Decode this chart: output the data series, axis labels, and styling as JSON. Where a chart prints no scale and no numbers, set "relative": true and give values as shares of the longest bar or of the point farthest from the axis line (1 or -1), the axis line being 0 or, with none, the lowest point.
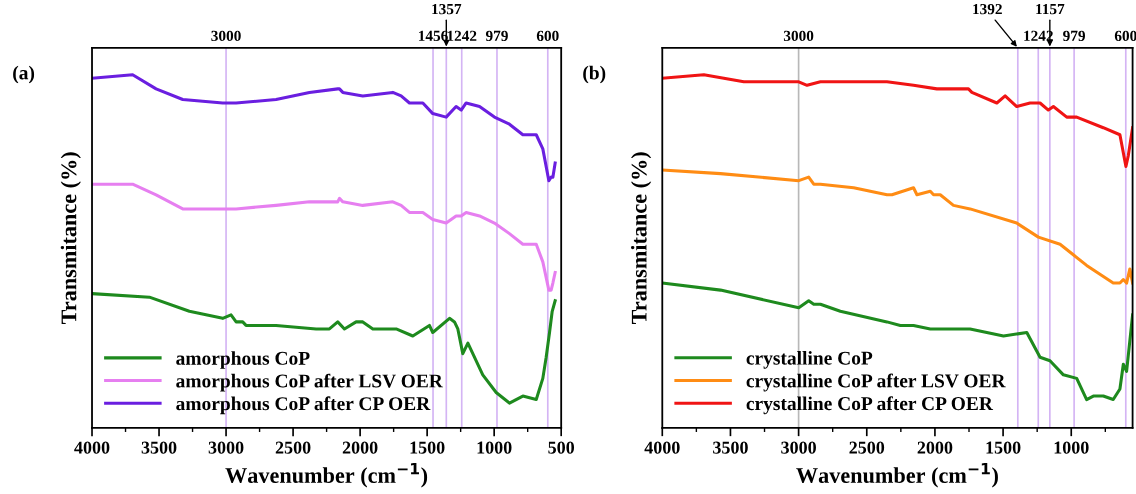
{
  "chart_data": [
    {
      "type": "line",
      "title": "(a)",
      "xlabel": "Wavenumber (cm$^{−1}$)",
      "ylabel": "Transmitance (%)",
      "relative": true,
      "xlim": [
        4000,
        500
      ],
      "xticks": [
        4000,
        3500,
        3000,
        2500,
        2000,
        1500,
        1000,
        500
      ],
      "legend": "bottom left",
      "grid": false,
      "tick_labels": "x",
      "ref_lines": [
        {
          "axis": "x",
          "value": 3000,
          "label": "3000",
          "color": "#d4b4f4"
        },
        {
          "axis": "x",
          "value": 1456,
          "label": "1456",
          "color": "#d4b4f4"
        },
        {
          "axis": "x",
          "value": 1242,
          "label": "1242",
          "color": "#d4b4f4"
        },
        {
          "axis": "x",
          "value": 1357,
          "label": "1357",
          "color": "#d4b4f4"
        },
        {
          "axis": "x",
          "value": 979,
          "label": "979",
          "color": "#d4b4f4"
        },
        {
          "axis": "x",
          "value": 600,
          "label": "600",
          "color": "#d4b4f4"
        }
      ],
      "series": [
        {
          "name": "amorphous CoP",
          "color": "#1e8a1e",
          "x": [
            4000,
            3572,
            3274,
            3025,
            2963,
            2925,
            2876,
            2851,
            2627,
            2328,
            2229,
            2167,
            2117,
            2030,
            1980,
            1905,
            1731,
            1607,
            1483,
            1458,
            1333,
            1296,
            1271,
            1234,
            1196,
            1085,
            985,
            886,
            836,
            786,
            686,
            637,
            612,
            587,
            567,
            545
          ],
          "values": [
            0.38,
            0.37,
            0.33,
            0.31,
            0.32,
            0.3,
            0.3,
            0.29,
            0.29,
            0.28,
            0.28,
            0.3,
            0.28,
            0.3,
            0.3,
            0.28,
            0.28,
            0.26,
            0.29,
            0.27,
            0.31,
            0.3,
            0.28,
            0.21,
            0.24,
            0.15,
            0.1,
            0.07,
            0.08,
            0.09,
            0.08,
            0.14,
            0.2,
            0.27,
            0.33,
            0.36
          ]
        },
        {
          "name": "amorphous CoP after LSV OER",
          "color": "#e67ff0",
          "x": [
            4000,
            3697,
            3522,
            3323,
            3025,
            2925,
            2627,
            2378,
            2167,
            2154,
            2129,
            1980,
            1756,
            1694,
            1632,
            1532,
            1458,
            1358,
            1284,
            1246,
            1209,
            1109,
            998,
            886,
            786,
            686,
            637,
            592,
            575,
            562,
            545
          ],
          "values": [
            0.69,
            0.69,
            0.66,
            0.62,
            0.62,
            0.62,
            0.63,
            0.64,
            0.64,
            0.65,
            0.64,
            0.63,
            0.64,
            0.63,
            0.61,
            0.61,
            0.59,
            0.58,
            0.6,
            0.6,
            0.61,
            0.6,
            0.58,
            0.55,
            0.52,
            0.52,
            0.47,
            0.39,
            0.39,
            0.41,
            0.44
          ]
        },
        {
          "name": "amorphous CoP after CP OER",
          "color": "#6a1ee0",
          "x": [
            4000,
            3697,
            3522,
            3323,
            3025,
            2925,
            2627,
            2378,
            2167,
            2154,
            2129,
            1980,
            1756,
            1694,
            1632,
            1532,
            1458,
            1358,
            1284,
            1246,
            1209,
            1109,
            998,
            886,
            786,
            686,
            637,
            592,
            575,
            562,
            545
          ],
          "values": [
            0.99,
            1.0,
            0.96,
            0.93,
            0.92,
            0.92,
            0.93,
            0.95,
            0.96,
            0.96,
            0.95,
            0.94,
            0.95,
            0.94,
            0.92,
            0.92,
            0.89,
            0.88,
            0.91,
            0.9,
            0.92,
            0.91,
            0.88,
            0.86,
            0.83,
            0.83,
            0.79,
            0.7,
            0.71,
            0.71,
            0.75
          ]
        }
      ]
    },
    {
      "type": "line",
      "title": "(b)",
      "xlabel": "Wavenumber (cm$^{−1}$)",
      "ylabel": "Transmitance (%)",
      "relative": true,
      "xlim": [
        4000,
        550
      ],
      "xticks": [
        4000,
        3500,
        3000,
        2500,
        2000,
        1500,
        1000
      ],
      "legend": "bottom left",
      "grid": false,
      "tick_labels": "x",
      "ref_lines": [
        {
          "axis": "x",
          "value": 3000,
          "label": "3000",
          "color": "#b8b8b8"
        },
        {
          "axis": "x",
          "value": 1242,
          "label": "1242",
          "color": "#d4b4f4"
        },
        {
          "axis": "x",
          "value": 1392,
          "label": "1392",
          "color": "#d4b4f4"
        },
        {
          "axis": "x",
          "value": 1157,
          "label": "1157",
          "color": "#d4b4f4"
        },
        {
          "axis": "x",
          "value": 979,
          "label": "979",
          "color": "#d4b4f4"
        },
        {
          "axis": "x",
          "value": 600,
          "label": "600",
          "color": "#d4b4f4"
        }
      ],
      "series": [
        {
          "name": "crystalline CoP",
          "color": "#1e8a1e",
          "x": [
            4000,
            3573,
            2999,
            2926,
            2889,
            2840,
            2694,
            2352,
            2254,
            2157,
            2034,
            1937,
            1742,
            1497,
            1326,
            1229,
            1156,
            1058,
            960,
            887,
            838,
            765,
            692,
            643,
            618,
            594,
            550
          ],
          "values": [
            0.41,
            0.39,
            0.34,
            0.36,
            0.35,
            0.35,
            0.33,
            0.3,
            0.29,
            0.29,
            0.28,
            0.28,
            0.28,
            0.26,
            0.27,
            0.2,
            0.19,
            0.15,
            0.14,
            0.08,
            0.09,
            0.09,
            0.08,
            0.11,
            0.18,
            0.16,
            0.32
          ]
        },
        {
          "name": "crystalline CoP after LSV OER",
          "color": "#ff8c14",
          "x": [
            4000,
            3573,
            2999,
            2926,
            2889,
            2840,
            2596,
            2352,
            2315,
            2157,
            2132,
            2034,
            2010,
            1961,
            1864,
            1742,
            1400,
            1241,
            1082,
            985,
            887,
            692,
            643,
            618,
            594,
            570,
            550
          ],
          "values": [
            0.73,
            0.72,
            0.7,
            0.71,
            0.69,
            0.69,
            0.68,
            0.66,
            0.66,
            0.68,
            0.66,
            0.67,
            0.66,
            0.66,
            0.63,
            0.62,
            0.58,
            0.54,
            0.52,
            0.49,
            0.46,
            0.41,
            0.41,
            0.42,
            0.41,
            0.45,
            0.41
          ]
        },
        {
          "name": "crystalline CoP after CP OER",
          "color": "#f01414",
          "x": [
            4000,
            3695,
            3402,
            2999,
            2938,
            2840,
            2352,
            2157,
            1986,
            1754,
            1729,
            1546,
            1485,
            1400,
            1302,
            1229,
            1168,
            1131,
            1033,
            960,
            765,
            643,
            599,
            582,
            550
          ],
          "values": [
            0.99,
            1.0,
            0.98,
            0.98,
            0.97,
            0.98,
            0.98,
            0.97,
            0.96,
            0.96,
            0.95,
            0.92,
            0.94,
            0.91,
            0.92,
            0.92,
            0.9,
            0.91,
            0.88,
            0.88,
            0.85,
            0.83,
            0.74,
            0.77,
            0.85
          ]
        }
      ]
    }
  ]
}
